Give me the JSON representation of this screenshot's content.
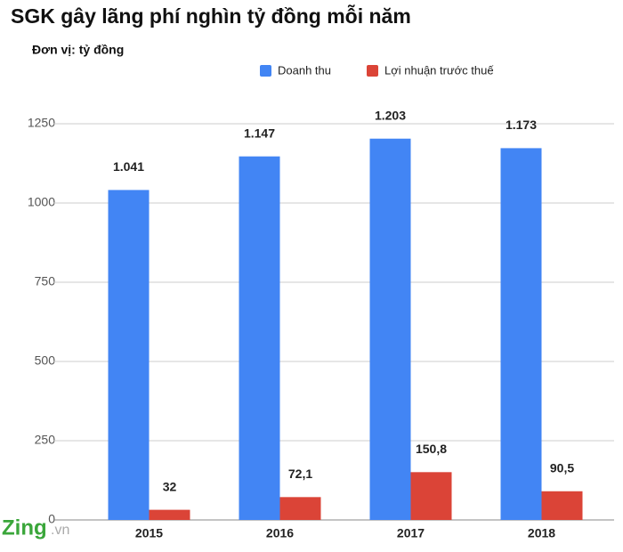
{
  "chart_data": {
    "type": "bar",
    "title": "SGK gây lãng phí nghìn tỷ đồng mỗi năm",
    "subtitle": "Đơn vị: tỷ đồng",
    "categories": [
      "2015",
      "2016",
      "2017",
      "2018"
    ],
    "series": [
      {
        "name": "Doanh thu",
        "color": "#4285f4",
        "values": [
          1041,
          1147,
          1203,
          1173
        ],
        "value_labels": [
          "1.041",
          "1.147",
          "1.203",
          "1.173"
        ]
      },
      {
        "name": "Lợi nhuận trước thuế",
        "color": "#db4437",
        "values": [
          32,
          72.1,
          150.8,
          90.5
        ],
        "value_labels": [
          "32",
          "72,1",
          "150,8",
          "90,5"
        ]
      }
    ],
    "ylim": [
      0,
      1250
    ],
    "yticks": [
      0,
      250,
      500,
      750,
      1000,
      1250
    ],
    "grid": true,
    "watermark": {
      "brand": "Zing",
      "suffix": ".vn"
    }
  }
}
